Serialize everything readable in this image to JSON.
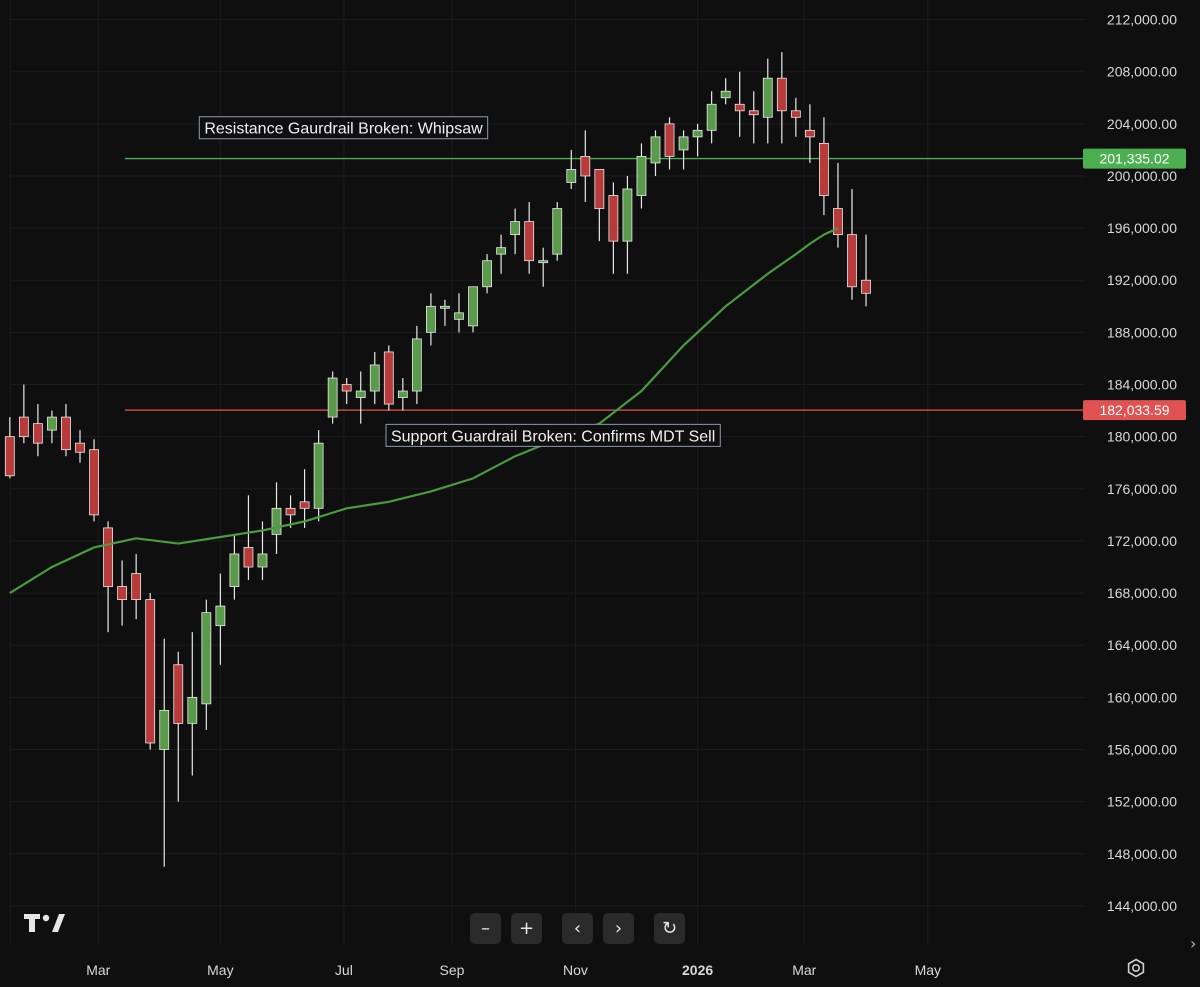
{
  "chart_data": {
    "type": "candlestick",
    "y_axis": {
      "ylim": [
        141000,
        213500
      ],
      "ticks": [
        212000,
        208000,
        204000,
        200000,
        196000,
        192000,
        188000,
        184000,
        180000,
        176000,
        172000,
        168000,
        164000,
        160000,
        156000,
        152000,
        148000,
        144000
      ],
      "tick_labels": [
        "212,000.00",
        "208,000.00",
        "204,000.00",
        "200,000.00",
        "196,000.00",
        "192,000.00",
        "188,000.00",
        "184,000.00",
        "180,000.00",
        "176,000.00",
        "172,000.00",
        "168,000.00",
        "164,000.00",
        "160,000.00",
        "156,000.00",
        "152,000.00",
        "148,000.00",
        "144,000.00"
      ]
    },
    "x_axis": {
      "labels": [
        {
          "text": "Mar",
          "week": 6.3,
          "bold": false
        },
        {
          "text": "May",
          "week": 15.0,
          "bold": false
        },
        {
          "text": "Jul",
          "week": 23.8,
          "bold": false
        },
        {
          "text": "Sep",
          "week": 31.5,
          "bold": false
        },
        {
          "text": "Nov",
          "week": 40.3,
          "bold": false
        },
        {
          "text": "2026",
          "week": 49.0,
          "bold": true
        },
        {
          "text": "Mar",
          "week": 56.6,
          "bold": false
        },
        {
          "text": "May",
          "week": 65.4,
          "bold": false
        }
      ],
      "range": [
        -0.7,
        76.6
      ]
    },
    "candles": [
      [
        180000,
        177000,
        181500,
        176800
      ],
      [
        181500,
        180000,
        184000,
        179500
      ],
      [
        181000,
        179500,
        182500,
        178500
      ],
      [
        180500,
        181500,
        182000,
        179500
      ],
      [
        181500,
        179000,
        182500,
        178500
      ],
      [
        179500,
        178800,
        180500,
        178000
      ],
      [
        179000,
        174000,
        179800,
        173500
      ],
      [
        173000,
        168500,
        173500,
        165000
      ],
      [
        168500,
        167500,
        170500,
        165500
      ],
      [
        169500,
        167500,
        171000,
        166000
      ],
      [
        167500,
        156500,
        168000,
        156000
      ],
      [
        156000,
        159000,
        164500,
        147000
      ],
      [
        162500,
        158000,
        163500,
        152000
      ],
      [
        158000,
        160000,
        165000,
        154000
      ],
      [
        159500,
        166500,
        167500,
        157500
      ],
      [
        165500,
        167000,
        169500,
        162500
      ],
      [
        168500,
        171000,
        172500,
        167500
      ],
      [
        171500,
        170000,
        175500,
        169000
      ],
      [
        170000,
        171000,
        173500,
        169000
      ],
      [
        172500,
        174500,
        176500,
        171000
      ],
      [
        174500,
        174000,
        175500,
        173000
      ],
      [
        175000,
        174500,
        177500,
        173000
      ],
      [
        174500,
        179500,
        180500,
        173500
      ],
      [
        181500,
        184500,
        185000,
        181000
      ],
      [
        184000,
        183500,
        184500,
        182500
      ],
      [
        183000,
        183500,
        185000,
        181000
      ],
      [
        183500,
        185500,
        186500,
        182500
      ],
      [
        186500,
        182500,
        187000,
        182000
      ],
      [
        183000,
        183500,
        184500,
        182000
      ],
      [
        183500,
        187500,
        188500,
        182500
      ],
      [
        188000,
        190000,
        191000,
        187000
      ],
      [
        190000,
        190000,
        190500,
        188500
      ],
      [
        189000,
        189500,
        191000,
        188000
      ],
      [
        188500,
        191500,
        191500,
        188000
      ],
      [
        191500,
        193500,
        194000,
        191000
      ],
      [
        194000,
        194500,
        195500,
        192500
      ],
      [
        195500,
        196500,
        197500,
        194000
      ],
      [
        196500,
        193500,
        198000,
        192500
      ],
      [
        193500,
        193500,
        194500,
        191500
      ],
      [
        194000,
        197500,
        198000,
        193500
      ],
      [
        199500,
        200500,
        202000,
        199000
      ],
      [
        201500,
        200000,
        203500,
        198000
      ],
      [
        200500,
        197500,
        200500,
        195000
      ],
      [
        198500,
        195000,
        199500,
        192500
      ],
      [
        195000,
        199000,
        200000,
        192500
      ],
      [
        198500,
        201500,
        202500,
        197500
      ],
      [
        201000,
        203000,
        203500,
        200000
      ],
      [
        204000,
        201500,
        204500,
        200500
      ],
      [
        202000,
        203000,
        203500,
        200500
      ],
      [
        203000,
        203500,
        204000,
        201500
      ],
      [
        203500,
        205500,
        206500,
        202500
      ],
      [
        206000,
        206500,
        207500,
        205500
      ],
      [
        205500,
        205000,
        208000,
        203000
      ],
      [
        205000,
        204700,
        206500,
        202500
      ],
      [
        204500,
        207500,
        209000,
        202500
      ],
      [
        207500,
        205000,
        209500,
        202500
      ],
      [
        205000,
        204500,
        206000,
        203000
      ],
      [
        203500,
        203000,
        205500,
        201000
      ],
      [
        202500,
        198500,
        204500,
        197000
      ],
      [
        197500,
        195500,
        201000,
        194500
      ],
      [
        195500,
        191500,
        199000,
        190500
      ],
      [
        192000,
        191000,
        195500,
        190000
      ]
    ],
    "ma_series": [
      [
        0,
        168000
      ],
      [
        3,
        170000
      ],
      [
        6,
        171500
      ],
      [
        9,
        172200
      ],
      [
        12,
        171800
      ],
      [
        15,
        172300
      ],
      [
        18,
        172800
      ],
      [
        21,
        173500
      ],
      [
        24,
        174500
      ],
      [
        27,
        175000
      ],
      [
        30,
        175800
      ],
      [
        33,
        176800
      ],
      [
        36,
        178500
      ],
      [
        39,
        179800
      ],
      [
        42,
        181000
      ],
      [
        45,
        183500
      ],
      [
        48,
        187000
      ],
      [
        51,
        190000
      ],
      [
        54,
        192500
      ],
      [
        56,
        194000
      ],
      [
        57,
        194800
      ],
      [
        58,
        195500
      ],
      [
        59,
        196000
      ]
    ],
    "levels": [
      {
        "value": 201335.02,
        "label": "201,335.02",
        "color": "#4caf50",
        "start_week": 8.2,
        "annotation": "Resistance Gaurdrail Broken: Whipsaw",
        "annotation_week": 13.5,
        "annotation_value": 203700
      },
      {
        "value": 182033.59,
        "label": "182,033.59",
        "color": "#e05252",
        "start_week": 8.2,
        "annotation": "Support Guardrail Broken: Confirms MDT Sell",
        "annotation_week": 26.8,
        "annotation_value": 180100
      }
    ],
    "colors": {
      "up": "#5a9a4b",
      "down": "#b83b3b",
      "wick": "#e8e8e8",
      "ma": "#4a9a40",
      "grid": "#1c1c1c",
      "text": "#d8d8d8"
    }
  },
  "toolbar": {
    "zoom_out": "–",
    "zoom_in": "+",
    "scroll_left": "‹",
    "scroll_right": "›",
    "reset": "↻"
  },
  "icons": {
    "logo": "tradingview-logo-icon",
    "settings": "gear-icon",
    "edge": "chevron-right-icon"
  }
}
